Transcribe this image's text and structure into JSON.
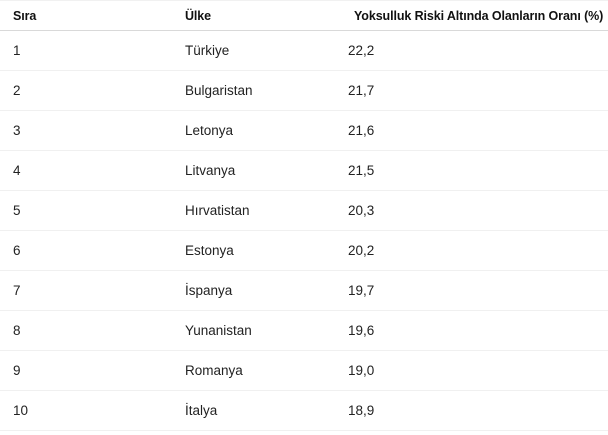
{
  "chart_data": {
    "type": "table",
    "columns": [
      "Sıra",
      "Ülke",
      "Yoksulluk Riski Altında Olanların Oranı (%)"
    ],
    "rows": [
      {
        "rank": "1",
        "country": "Türkiye",
        "rate": "22,2"
      },
      {
        "rank": "2",
        "country": "Bulgaristan",
        "rate": "21,7"
      },
      {
        "rank": "3",
        "country": "Letonya",
        "rate": "21,6"
      },
      {
        "rank": "4",
        "country": "Litvanya",
        "rate": "21,5"
      },
      {
        "rank": "5",
        "country": "Hırvatistan",
        "rate": "20,3"
      },
      {
        "rank": "6",
        "country": "Estonya",
        "rate": "20,2"
      },
      {
        "rank": "7",
        "country": "İspanya",
        "rate": "19,7"
      },
      {
        "rank": "8",
        "country": "Yunanistan",
        "rate": "19,6"
      },
      {
        "rank": "9",
        "country": "Romanya",
        "rate": "19,0"
      },
      {
        "rank": "10",
        "country": "İtalya",
        "rate": "18,9"
      }
    ],
    "rate_values": [
      22.2,
      21.7,
      21.6,
      21.5,
      20.3,
      20.2,
      19.7,
      19.6,
      19.0,
      18.9
    ]
  }
}
